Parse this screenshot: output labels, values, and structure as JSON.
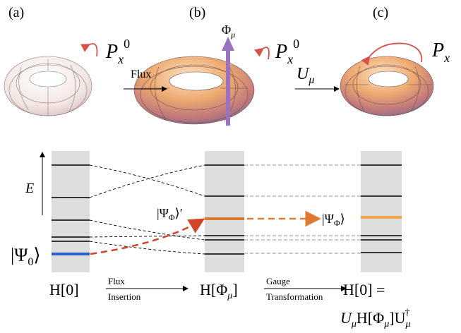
{
  "panels": {
    "a": "(a)",
    "b": "(b)",
    "c": "(c)"
  },
  "momentum": [
    {
      "symbol": "P",
      "sub": "x",
      "sup": "0"
    },
    {
      "symbol": "P",
      "sub": "x",
      "sup": "0"
    },
    {
      "symbol": "P",
      "sub": "x"
    }
  ],
  "flux_arrow": {
    "symbol": "Φ",
    "sub": "μ"
  },
  "top_arrows": {
    "flux": "Flux",
    "gauge": {
      "symbol": "U",
      "sub": "μ"
    }
  },
  "energy_axis": "E",
  "states": {
    "initial": {
      "open": "|Ψ",
      "sub": "0",
      "close": "⟩"
    },
    "inserted": {
      "open": "|Ψ",
      "sub": "Φ",
      "close": "⟩′"
    },
    "gauged": {
      "open": "|Ψ",
      "sub": "Φ",
      "close": "⟩"
    }
  },
  "hamiltonians": {
    "left": "H[0]",
    "middle": {
      "main": "H[Φ",
      "sub": "μ",
      "close": "]"
    },
    "right_top": "H[0] =",
    "right_bottom": [
      "U",
      "μ",
      "H[Φ",
      "μ",
      "]U",
      "μ",
      "†"
    ]
  },
  "steps": {
    "flux": [
      "Flux",
      "Insertion"
    ],
    "gauge": [
      "Gauge",
      "Transformation"
    ]
  }
}
